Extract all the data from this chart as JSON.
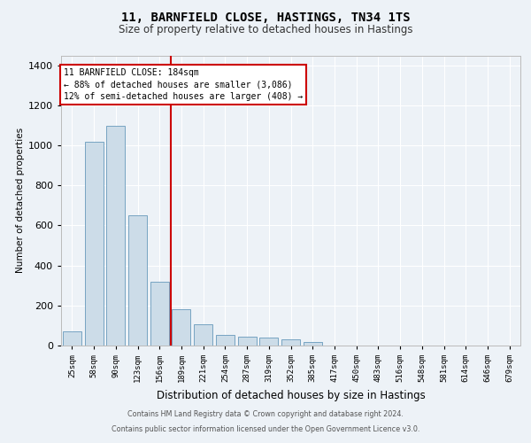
{
  "title1": "11, BARNFIELD CLOSE, HASTINGS, TN34 1TS",
  "title2": "Size of property relative to detached houses in Hastings",
  "xlabel": "Distribution of detached houses by size in Hastings",
  "ylabel": "Number of detached properties",
  "categories": [
    "25sqm",
    "58sqm",
    "90sqm",
    "123sqm",
    "156sqm",
    "189sqm",
    "221sqm",
    "254sqm",
    "287sqm",
    "319sqm",
    "352sqm",
    "385sqm",
    "417sqm",
    "450sqm",
    "483sqm",
    "516sqm",
    "548sqm",
    "581sqm",
    "614sqm",
    "646sqm",
    "679sqm"
  ],
  "values": [
    70,
    1020,
    1100,
    650,
    320,
    180,
    105,
    55,
    45,
    40,
    30,
    18,
    0,
    0,
    0,
    0,
    0,
    0,
    0,
    0,
    0
  ],
  "bar_color": "#ccdce8",
  "bar_edge_color": "#6699bb",
  "red_line_x": 4.5,
  "annotation_title": "11 BARNFIELD CLOSE: 184sqm",
  "annotation_line1": "← 88% of detached houses are smaller (3,086)",
  "annotation_line2": "12% of semi-detached houses are larger (408) →",
  "ylim": [
    0,
    1450
  ],
  "yticks": [
    0,
    200,
    400,
    600,
    800,
    1000,
    1200,
    1400
  ],
  "footer1": "Contains HM Land Registry data © Crown copyright and database right 2024.",
  "footer2": "Contains public sector information licensed under the Open Government Licence v3.0.",
  "background_color": "#edf2f7",
  "plot_background": "#edf2f7",
  "grid_color": "#ffffff",
  "annotation_box_color": "#ffffff",
  "annotation_box_edge": "#cc0000",
  "red_line_color": "#cc0000",
  "title1_fontsize": 10,
  "title2_fontsize": 8.5,
  "ylabel_fontsize": 7.5,
  "xlabel_fontsize": 8.5,
  "ytick_fontsize": 8,
  "xtick_fontsize": 6.5,
  "ann_fontsize": 7.0
}
